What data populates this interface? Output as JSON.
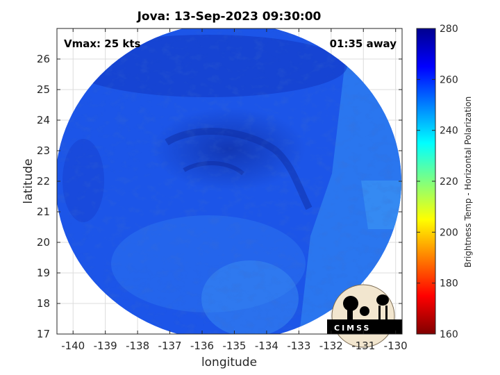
{
  "chart_data": {
    "type": "heatmap",
    "title": "Jova: 13-Sep-2023 09:30:00",
    "xlabel": "longitude",
    "ylabel": "latitude",
    "xlim": [
      -140.5,
      -129.8
    ],
    "ylim": [
      17,
      27
    ],
    "xticks": [
      -140,
      -139,
      -138,
      -137,
      -136,
      -135,
      -134,
      -133,
      -132,
      -131,
      -130
    ],
    "yticks": [
      17,
      18,
      19,
      20,
      21,
      22,
      23,
      24,
      25,
      26
    ],
    "grid": true,
    "annotations": {
      "vmax": "Vmax: 25 kts",
      "time_offset": "01:35 away"
    },
    "colorbar": {
      "label": "Brightness Temp - Horizontal Polarization",
      "range": [
        160,
        280
      ],
      "ticks": [
        160,
        180,
        200,
        220,
        240,
        260,
        280
      ],
      "colormap": "jet"
    },
    "storm_center": {
      "lon": -135.8,
      "lat": 22.3
    },
    "swath_edge_lon": -132.3,
    "logo": "CIMSS"
  },
  "colors": {
    "dominant": "#1a4fe6",
    "dark_core": "#0d2a9e",
    "light_band": "#2f86f0"
  }
}
